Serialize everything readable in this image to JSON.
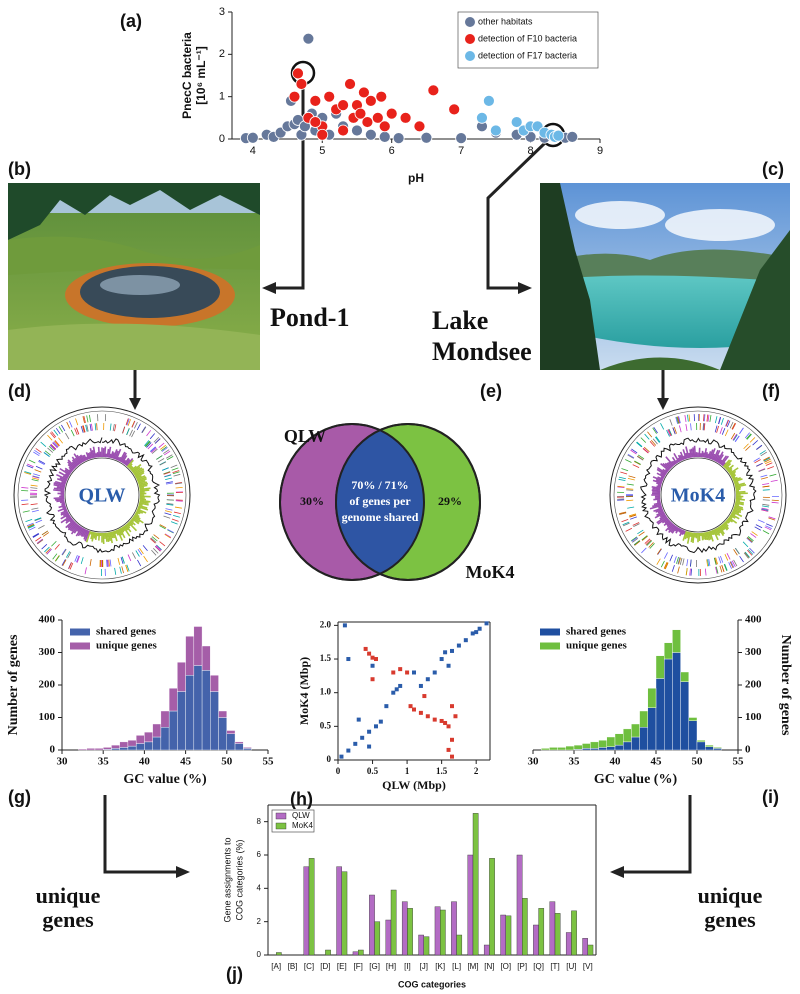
{
  "panels": {
    "a": "(a)",
    "b": "(b)",
    "c": "(c)",
    "d": "(d)",
    "e": "(e)",
    "f": "(f)",
    "g": "(g)",
    "h": "(h)",
    "i": "(i)",
    "j": "(j)"
  },
  "annotations": {
    "pond": "Pond-1",
    "lake": [
      "Lake",
      "Mondsee"
    ],
    "unique_left": [
      "unique",
      "genes"
    ],
    "unique_right": [
      "unique",
      "genes"
    ]
  },
  "genome_maps": [
    "QLW",
    "MoK4"
  ],
  "venn": {
    "left": "QLW",
    "right": "MoK4",
    "left_pct": "30%",
    "right_pct": "29%",
    "shared": [
      "70% / 71%",
      "of genes per",
      "genome shared"
    ]
  },
  "chart_data": [
    {
      "type": "scatter",
      "xlabel": "pH",
      "ylabel": [
        "PnecC bacteria",
        "[10⁶ mL⁻¹]"
      ],
      "xlim": [
        3.7,
        9
      ],
      "ylim": [
        0,
        3
      ],
      "xticks": [
        4,
        5,
        6,
        7,
        8,
        9
      ],
      "yticks": [
        0,
        1,
        2,
        3
      ],
      "legend": "upper right",
      "series": [
        {
          "name": "other habitats",
          "color": "#66789a",
          "x": [
            3.9,
            4.0,
            4.2,
            4.3,
            4.4,
            4.5,
            4.55,
            4.6,
            4.65,
            4.7,
            4.75,
            4.8,
            4.85,
            4.9,
            5.0,
            5.1,
            5.2,
            5.3,
            5.5,
            5.7,
            5.9,
            6.1,
            6.5,
            7.0,
            7.3,
            7.5,
            7.8,
            8.0,
            8.2,
            8.5,
            8.6
          ],
          "values": [
            0.02,
            0.03,
            0.1,
            0.05,
            0.15,
            0.3,
            0.9,
            0.35,
            0.45,
            0.1,
            0.3,
            2.37,
            0.6,
            0.2,
            0.5,
            0.1,
            0.6,
            0.3,
            0.2,
            0.1,
            0.05,
            0.02,
            0.03,
            0.02,
            0.3,
            0.15,
            0.1,
            0.05,
            0.03,
            0.03,
            0.05
          ]
        },
        {
          "name": "detection of F10 bacteria",
          "color": "#e8221b",
          "x": [
            4.65,
            4.6,
            4.7,
            4.8,
            4.9,
            5.0,
            5.1,
            5.2,
            5.3,
            5.4,
            5.45,
            5.5,
            5.6,
            5.65,
            5.7,
            5.8,
            5.85,
            5.9,
            6.0,
            6.2,
            6.4,
            6.6,
            6.9,
            5.0,
            5.3,
            4.9,
            5.55
          ],
          "values": [
            1.55,
            1.0,
            1.3,
            0.5,
            0.9,
            0.3,
            1.0,
            0.7,
            0.8,
            1.3,
            0.5,
            0.8,
            1.1,
            0.4,
            0.9,
            0.5,
            1.0,
            0.3,
            0.6,
            0.5,
            0.3,
            1.15,
            0.7,
            0.1,
            0.2,
            0.4,
            0.6
          ]
        },
        {
          "name": "detection of F17 bacteria",
          "color": "#6cb8e6",
          "x": [
            7.3,
            7.4,
            7.8,
            7.9,
            8.0,
            8.1,
            8.2,
            8.3,
            8.35,
            8.4,
            7.5
          ],
          "values": [
            0.5,
            0.9,
            0.4,
            0.2,
            0.3,
            0.3,
            0.15,
            0.1,
            0.05,
            0.08,
            0.2
          ]
        }
      ]
    },
    {
      "type": "histogram",
      "xlabel": "GC value (%)",
      "ylabel": "Number of genes",
      "xlim": [
        30,
        55
      ],
      "ylim": [
        0,
        400
      ],
      "xticks": [
        30,
        35,
        40,
        45,
        50,
        55
      ],
      "yticks": [
        0,
        100,
        200,
        300,
        400
      ],
      "legend": "upper left",
      "bins": [
        32,
        33,
        34,
        35,
        36,
        37,
        38,
        39,
        40,
        41,
        42,
        43,
        44,
        45,
        46,
        47,
        48,
        49,
        50,
        51,
        52,
        53
      ],
      "series": [
        {
          "name": "shared genes",
          "color": "#4463ab",
          "values": [
            0,
            0,
            0,
            2,
            5,
            8,
            12,
            20,
            25,
            40,
            70,
            120,
            180,
            230,
            260,
            245,
            180,
            100,
            50,
            20,
            5
          ]
        },
        {
          "name": "unique genes",
          "color": "#a55ea8",
          "values": [
            3,
            5,
            5,
            6,
            10,
            17,
            18,
            25,
            30,
            40,
            50,
            70,
            90,
            120,
            120,
            75,
            50,
            20,
            10,
            5,
            3
          ]
        }
      ]
    },
    {
      "type": "scatter",
      "xlabel": "QLW (Mbp)",
      "ylabel": "MoK4 (Mbp)",
      "xlim": [
        0,
        2.2
      ],
      "ylim": [
        0,
        2.05
      ],
      "xticks": [
        0,
        0.5,
        1,
        1.5,
        2
      ],
      "yticks": [
        0,
        0.5,
        {
          "value": 1,
          "label": "1.0"
        },
        1.5,
        {
          "value": 2,
          "label": "2.0"
        }
      ],
      "series": [
        {
          "color": "#2a5caa",
          "x": [
            0.05,
            0.15,
            0.25,
            0.35,
            0.45,
            0.55,
            0.62,
            0.8,
            0.85,
            0.9,
            1.2,
            1.3,
            1.4,
            1.5,
            1.55,
            1.65,
            1.75,
            1.85,
            1.95,
            2.05,
            2.15,
            0.1,
            0.15,
            0.3,
            0.5,
            0.7,
            1.1,
            1.6,
            2.0,
            0.45
          ],
          "values": [
            0.05,
            0.14,
            0.24,
            0.33,
            0.42,
            0.5,
            0.57,
            1.0,
            1.05,
            1.1,
            1.1,
            1.2,
            1.3,
            1.5,
            1.6,
            1.62,
            1.7,
            1.78,
            1.88,
            1.95,
            2.03,
            2.0,
            1.5,
            0.6,
            1.4,
            0.8,
            1.3,
            1.4,
            1.9,
            0.2
          ]
        },
        {
          "color": "#d83a2e",
          "x": [
            0.4,
            0.45,
            0.5,
            0.55,
            0.9,
            1.0,
            1.05,
            1.1,
            1.2,
            1.3,
            1.4,
            1.5,
            1.55,
            1.6,
            1.65,
            1.65,
            1.7,
            1.6,
            1.65,
            0.5,
            0.8,
            1.25
          ],
          "values": [
            1.65,
            1.58,
            1.52,
            1.5,
            1.35,
            1.3,
            0.8,
            0.75,
            0.7,
            0.65,
            0.6,
            0.58,
            0.55,
            0.5,
            0.8,
            0.3,
            0.65,
            0.15,
            0.05,
            1.2,
            1.3,
            0.95
          ]
        }
      ]
    },
    {
      "type": "histogram",
      "xlabel": "GC value (%)",
      "ylabel": "Number of genes",
      "yaxis": "right",
      "xlim": [
        30,
        55
      ],
      "ylim": [
        0,
        400
      ],
      "xticks": [
        30,
        35,
        40,
        45,
        50,
        55
      ],
      "yticks": [
        0,
        100,
        200,
        300,
        400
      ],
      "legend": "upper left",
      "bins": [
        31,
        32,
        33,
        34,
        35,
        36,
        37,
        38,
        39,
        40,
        41,
        42,
        43,
        44,
        45,
        46,
        47,
        48,
        49,
        50,
        51,
        52,
        53
      ],
      "series": [
        {
          "name": "shared genes",
          "color": "#1f4fa0",
          "values": [
            0,
            0,
            0,
            0,
            2,
            5,
            5,
            8,
            10,
            15,
            25,
            40,
            70,
            130,
            220,
            280,
            300,
            210,
            90,
            25,
            10,
            5
          ]
        },
        {
          "name": "unique genes",
          "color": "#6fbf3f",
          "values": [
            5,
            8,
            8,
            12,
            13,
            15,
            20,
            22,
            30,
            35,
            40,
            40,
            50,
            60,
            70,
            50,
            70,
            30,
            10,
            5,
            5,
            3
          ]
        }
      ]
    },
    {
      "type": "bar",
      "xlabel": "COG categories",
      "ylabel": [
        "Gene assignments to",
        "COG categories (%)"
      ],
      "ylim": [
        0,
        9
      ],
      "yticks": [
        0,
        2,
        4,
        6,
        8
      ],
      "legend": "upper left",
      "categories": [
        "[A]",
        "[B]",
        "[C]",
        "[D]",
        "[E]",
        "[F]",
        "[G]",
        "[H]",
        "[I]",
        "[J]",
        "[K]",
        "[L]",
        "[M]",
        "[N]",
        "[O]",
        "[P]",
        "[Q]",
        "[T]",
        "[U]",
        "[V]"
      ],
      "series": [
        {
          "name": "QLW",
          "color": "#b36cc4",
          "values": [
            0,
            0,
            5.3,
            0,
            5.3,
            0.2,
            3.6,
            2.1,
            3.2,
            1.2,
            2.9,
            3.2,
            6.0,
            0.6,
            2.4,
            6.0,
            1.8,
            3.2,
            1.35,
            1.0
          ]
        },
        {
          "name": "MoK4",
          "color": "#7cc242",
          "values": [
            0.15,
            0,
            5.8,
            0.3,
            5.0,
            0.3,
            2.0,
            3.9,
            2.8,
            1.1,
            2.7,
            1.2,
            8.5,
            5.8,
            2.35,
            3.4,
            2.8,
            2.5,
            2.65,
            0.6
          ]
        }
      ]
    }
  ]
}
